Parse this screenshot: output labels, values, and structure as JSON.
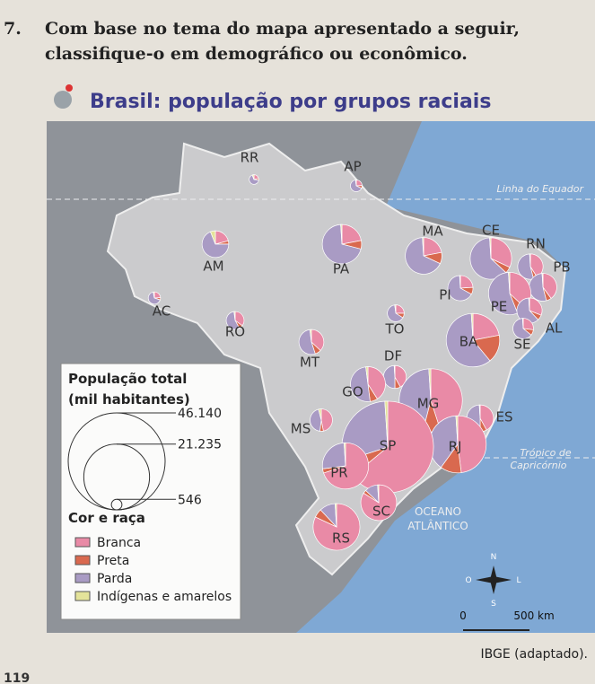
{
  "question": {
    "number": "7.",
    "lines": [
      "Com base no tema do mapa apresentado a seguir,",
      "classifique-o em demográfico ou econômico."
    ]
  },
  "map": {
    "title": "Brasil: população por grupos raciais",
    "equator": "Linha do Equador",
    "tropic": [
      "Trópico de",
      "Capricórnio"
    ],
    "ocean": [
      "OCEANO",
      "ATLÂNTICO"
    ],
    "compass": {
      "n": "N",
      "s": "S",
      "l": "L",
      "o": "O"
    },
    "scale": {
      "start": "0",
      "end": "500 km"
    },
    "states": [
      {
        "label": "RR",
        "pop": 451,
        "shares": [
          21,
          6,
          67,
          6
        ]
      },
      {
        "label": "AP",
        "pop": 669,
        "shares": [
          24,
          8,
          66,
          2
        ]
      },
      {
        "label": "AM",
        "pop": 3484,
        "shares": [
          21,
          4,
          69,
          6
        ]
      },
      {
        "label": "PA",
        "pop": 7581,
        "shares": [
          22,
          7,
          70,
          1
        ]
      },
      {
        "label": "AC",
        "pop": 734,
        "shares": [
          24,
          6,
          67,
          3
        ]
      },
      {
        "label": "RO",
        "pop": 1562,
        "shares": [
          35,
          7,
          56,
          2
        ]
      },
      {
        "label": "MT",
        "pop": 3035,
        "shares": [
          37,
          8,
          53,
          2
        ]
      },
      {
        "label": "TO",
        "pop": 1383,
        "shares": [
          25,
          9,
          64,
          2
        ]
      },
      {
        "label": "MA",
        "pop": 6575,
        "shares": [
          22,
          10,
          67,
          1
        ]
      },
      {
        "label": "PI",
        "pop": 3119,
        "shares": [
          24,
          9,
          66,
          1
        ]
      },
      {
        "label": "CE",
        "pop": 8452,
        "shares": [
          32,
          5,
          62,
          1
        ]
      },
      {
        "label": "RN",
        "pop": 3168,
        "shares": [
          41,
          5,
          53,
          1
        ]
      },
      {
        "label": "PB",
        "pop": 3767,
        "shares": [
          40,
          6,
          53,
          1
        ]
      },
      {
        "label": "PE",
        "pop": 8796,
        "shares": [
          37,
          7,
          55,
          1
        ]
      },
      {
        "label": "AL",
        "pop": 3120,
        "shares": [
          31,
          7,
          61,
          1
        ]
      },
      {
        "label": "SE",
        "pop": 2068,
        "shares": [
          27,
          9,
          63,
          1
        ]
      },
      {
        "label": "BA",
        "pop": 14017,
        "shares": [
          22,
          17,
          60,
          1
        ]
      },
      {
        "label": "DF",
        "pop": 2570,
        "shares": [
          42,
          8,
          49,
          1
        ]
      },
      {
        "label": "GO",
        "pop": 6004,
        "shares": [
          41,
          7,
          50,
          2
        ]
      },
      {
        "label": "MG",
        "pop": 19597,
        "shares": [
          45,
          9,
          45,
          1
        ]
      },
      {
        "label": "ES",
        "pop": 3515,
        "shares": [
          42,
          8,
          49,
          1
        ]
      },
      {
        "label": "RJ",
        "pop": 15990,
        "shares": [
          48,
          12,
          39,
          1
        ]
      },
      {
        "label": "SP",
        "pop": 41262,
        "shares": [
          64,
          6,
          29,
          1
        ]
      },
      {
        "label": "MS",
        "pop": 2449,
        "shares": [
          47,
          5,
          44,
          4
        ]
      },
      {
        "label": "PR",
        "pop": 10445,
        "shares": [
          70,
          3,
          26,
          1
        ]
      },
      {
        "label": "SC",
        "pop": 6248,
        "shares": [
          84,
          3,
          12,
          1
        ]
      },
      {
        "label": "RS",
        "pop": 10694,
        "shares": [
          82,
          6,
          11,
          1
        ]
      }
    ],
    "legend": {
      "size_title": [
        "População total",
        "(mil habitantes)"
      ],
      "sizes": [
        {
          "value": 46140,
          "label": "46.140"
        },
        {
          "value": 21235,
          "label": "21.235"
        },
        {
          "value": 546,
          "label": "546"
        }
      ],
      "color_title": "Cor e raça",
      "groups": [
        {
          "name": "Branca",
          "color": "#e98aa6"
        },
        {
          "name": "Preta",
          "color": "#d9694f"
        },
        {
          "name": "Parda",
          "color": "#a99bc4"
        },
        {
          "name": "Indígenas e amarelos",
          "color": "#e4e39a"
        }
      ]
    }
  },
  "source": "IBGE (adaptado).",
  "page_number": "119"
}
